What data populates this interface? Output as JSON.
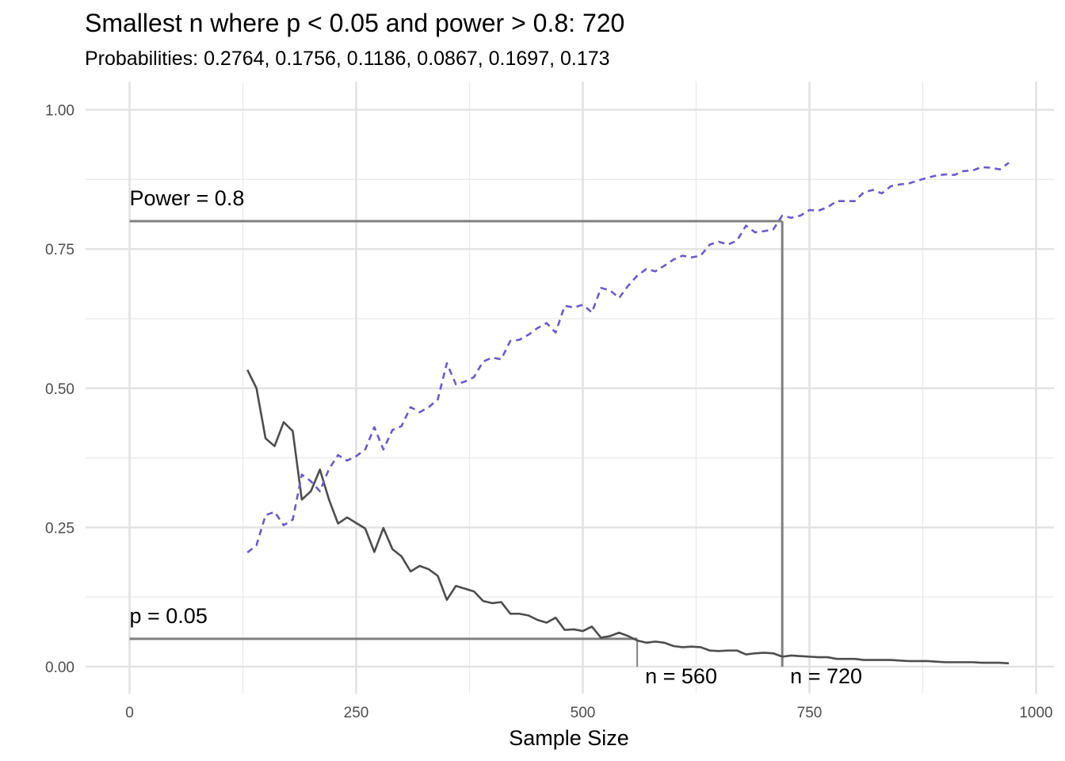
{
  "chart_data": {
    "type": "line",
    "title": "Smallest n where p < 0.05 and power > 0.8: 720",
    "subtitle": "Probabilities: 0.2764, 0.1756, 0.1186, 0.0867, 0.1697, 0.173",
    "xlabel": "Sample Size",
    "ylabel": "",
    "xlim": [
      0,
      1000
    ],
    "ylim": [
      0,
      1
    ],
    "x_ticks": [
      "0",
      "250",
      "500",
      "750",
      "1000"
    ],
    "y_ticks": [
      "0.00",
      "0.25",
      "0.50",
      "0.75",
      "1.00"
    ],
    "grid": true,
    "legend": "none",
    "series": [
      {
        "style": "solid",
        "color": "#4d4d4d",
        "x": [
          130,
          140,
          150,
          160,
          170,
          180,
          190,
          200,
          210,
          220,
          230,
          240,
          250,
          260,
          270,
          280,
          290,
          300,
          310,
          320,
          330,
          340,
          350,
          360,
          370,
          380,
          390,
          400,
          410,
          420,
          430,
          440,
          450,
          460,
          470,
          480,
          490,
          500,
          510,
          520,
          530,
          540,
          550,
          560,
          570,
          580,
          590,
          600,
          610,
          620,
          630,
          640,
          650,
          660,
          670,
          680,
          690,
          700,
          710,
          720,
          730,
          740,
          750,
          760,
          770,
          780,
          790,
          800,
          810,
          820,
          830,
          840,
          850,
          860,
          870,
          880,
          890,
          900,
          910,
          920,
          930,
          940,
          950,
          960,
          970
        ],
        "values": [
          0.533,
          0.5,
          0.41,
          0.396,
          0.439,
          0.423,
          0.3,
          0.315,
          0.354,
          0.3,
          0.257,
          0.268,
          0.258,
          0.248,
          0.206,
          0.249,
          0.211,
          0.198,
          0.171,
          0.181,
          0.175,
          0.163,
          0.12,
          0.145,
          0.14,
          0.135,
          0.118,
          0.114,
          0.116,
          0.095,
          0.095,
          0.092,
          0.084,
          0.079,
          0.088,
          0.066,
          0.067,
          0.064,
          0.072,
          0.052,
          0.055,
          0.061,
          0.055,
          0.047,
          0.043,
          0.045,
          0.043,
          0.037,
          0.035,
          0.036,
          0.035,
          0.029,
          0.028,
          0.029,
          0.029,
          0.022,
          0.024,
          0.025,
          0.024,
          0.018,
          0.02,
          0.019,
          0.018,
          0.017,
          0.017,
          0.014,
          0.014,
          0.014,
          0.012,
          0.012,
          0.012,
          0.012,
          0.011,
          0.01,
          0.01,
          0.01,
          0.009,
          0.008,
          0.008,
          0.008,
          0.008,
          0.007,
          0.007,
          0.007,
          0.006
        ]
      },
      {
        "style": "dashed",
        "color": "#6a5acd",
        "x": [
          130,
          140,
          150,
          160,
          170,
          180,
          190,
          200,
          210,
          220,
          230,
          240,
          250,
          260,
          270,
          280,
          290,
          300,
          310,
          320,
          330,
          340,
          350,
          360,
          370,
          380,
          390,
          400,
          410,
          420,
          430,
          440,
          450,
          460,
          470,
          480,
          490,
          500,
          510,
          520,
          530,
          540,
          550,
          560,
          570,
          580,
          590,
          600,
          610,
          620,
          630,
          640,
          650,
          660,
          670,
          680,
          690,
          700,
          710,
          720,
          730,
          740,
          750,
          760,
          770,
          780,
          790,
          800,
          810,
          820,
          830,
          840,
          850,
          860,
          870,
          880,
          890,
          900,
          910,
          920,
          930,
          940,
          950,
          960,
          970
        ],
        "values": [
          0.205,
          0.218,
          0.272,
          0.278,
          0.254,
          0.264,
          0.345,
          0.333,
          0.315,
          0.355,
          0.38,
          0.37,
          0.378,
          0.39,
          0.43,
          0.39,
          0.425,
          0.432,
          0.466,
          0.457,
          0.466,
          0.48,
          0.545,
          0.507,
          0.512,
          0.52,
          0.548,
          0.555,
          0.552,
          0.585,
          0.587,
          0.596,
          0.608,
          0.617,
          0.6,
          0.648,
          0.645,
          0.65,
          0.636,
          0.68,
          0.676,
          0.662,
          0.684,
          0.702,
          0.714,
          0.71,
          0.72,
          0.731,
          0.738,
          0.735,
          0.738,
          0.758,
          0.763,
          0.758,
          0.765,
          0.792,
          0.78,
          0.782,
          0.785,
          0.81,
          0.806,
          0.81,
          0.82,
          0.819,
          0.825,
          0.836,
          0.836,
          0.836,
          0.852,
          0.856,
          0.85,
          0.863,
          0.866,
          0.868,
          0.873,
          0.878,
          0.882,
          0.884,
          0.883,
          0.89,
          0.891,
          0.897,
          0.896,
          0.893,
          0.905
        ]
      }
    ],
    "reference_lines": [
      {
        "label": "Power = 0.8",
        "y": 0.8,
        "x_end": 720
      },
      {
        "label": "p = 0.05",
        "y": 0.05,
        "x_end": 560
      }
    ],
    "vertical_markers": [
      {
        "label": "n = 560",
        "x": 560,
        "y_top": 0.05
      },
      {
        "label": "n = 720",
        "x": 720,
        "y_top": 0.8
      }
    ]
  }
}
